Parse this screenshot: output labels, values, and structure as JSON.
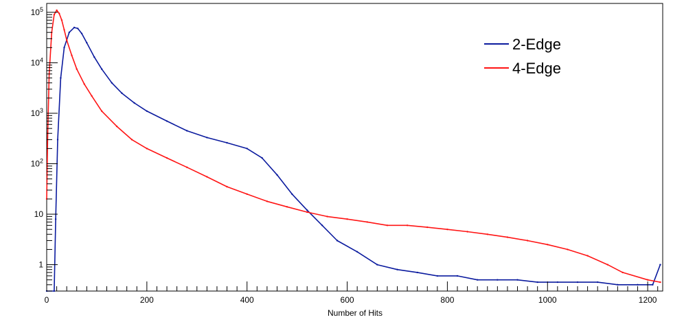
{
  "chart_data": {
    "type": "line",
    "title": "",
    "xlabel": "Number of Hits",
    "ylabel": "",
    "xlim": [
      0,
      1230
    ],
    "ylim": [
      0.3,
      150000
    ],
    "yscale": "log",
    "x_ticks": [
      {
        "value": 0,
        "label": "0"
      },
      {
        "value": 200,
        "label": "200"
      },
      {
        "value": 400,
        "label": "400"
      },
      {
        "value": 600,
        "label": "600"
      },
      {
        "value": 800,
        "label": "800"
      },
      {
        "value": 1000,
        "label": "1000"
      },
      {
        "value": 1200,
        "label": "1200"
      }
    ],
    "y_ticks": [
      {
        "value": 1,
        "base": "1",
        "exp": ""
      },
      {
        "value": 10,
        "base": "10",
        "exp": ""
      },
      {
        "value": 100,
        "base": "10",
        "exp": "2"
      },
      {
        "value": 1000,
        "base": "10",
        "exp": "3"
      },
      {
        "value": 10000,
        "base": "10",
        "exp": "4"
      },
      {
        "value": 100000,
        "base": "10",
        "exp": "5"
      }
    ],
    "legend": {
      "position": "top-right",
      "entries": [
        "2-Edge",
        "4-Edge"
      ]
    },
    "series": [
      {
        "name": "2-Edge",
        "color": "#0a1a9e",
        "x": [
          0,
          15,
          18,
          22,
          28,
          35,
          45,
          55,
          62,
          70,
          80,
          95,
          110,
          130,
          150,
          175,
          200,
          240,
          280,
          320,
          360,
          400,
          430,
          460,
          490,
          520,
          550,
          580,
          620,
          660,
          700,
          740,
          780,
          820,
          860,
          900,
          940,
          980,
          1020,
          1060,
          1100,
          1140,
          1180,
          1210,
          1225
        ],
        "values": [
          0.3,
          0.3,
          8,
          300,
          5000,
          20000,
          40000,
          50000,
          48000,
          38000,
          25000,
          13000,
          7500,
          4000,
          2500,
          1600,
          1100,
          700,
          450,
          330,
          260,
          200,
          130,
          60,
          25,
          12,
          6,
          3,
          1.8,
          1,
          0.8,
          0.7,
          0.6,
          0.6,
          0.5,
          0.5,
          0.5,
          0.45,
          0.45,
          0.45,
          0.45,
          0.4,
          0.4,
          0.4,
          1
        ]
      },
      {
        "name": "4-Edge",
        "color": "#ff1414",
        "x": [
          0,
          2,
          5,
          10,
          15,
          20,
          25,
          30,
          35,
          40,
          50,
          60,
          75,
          90,
          110,
          140,
          170,
          200,
          240,
          280,
          320,
          360,
          400,
          440,
          480,
          520,
          560,
          600,
          640,
          680,
          720,
          760,
          800,
          840,
          880,
          920,
          960,
          1000,
          1040,
          1080,
          1120,
          1150,
          1200,
          1225
        ],
        "values": [
          20,
          400,
          6000,
          40000,
          90000,
          110000,
          95000,
          70000,
          45000,
          28000,
          14000,
          7500,
          3800,
          2200,
          1100,
          550,
          300,
          200,
          130,
          85,
          55,
          35,
          25,
          18,
          14,
          11,
          9,
          8,
          7,
          6,
          6,
          5.5,
          5,
          4.5,
          4,
          3.5,
          3,
          2.5,
          2,
          1.5,
          1,
          0.7,
          0.5,
          0.45
        ]
      }
    ]
  }
}
